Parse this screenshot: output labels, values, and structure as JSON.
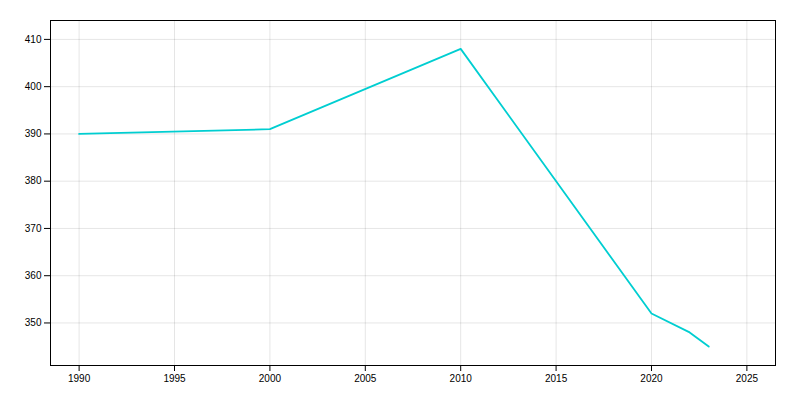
{
  "chart_data": {
    "type": "line",
    "x": [
      1990,
      2000,
      2010,
      2020,
      2022,
      2023
    ],
    "values": [
      390,
      391,
      408,
      352,
      348,
      345
    ],
    "color": "#00CED1",
    "xlim": [
      1988.5,
      2026.5
    ],
    "xticks": [
      1990,
      1995,
      2000,
      2005,
      2010,
      2015,
      2020,
      2025
    ],
    "ylim": [
      341,
      414
    ],
    "yticks": [
      350,
      360,
      370,
      380,
      390,
      400,
      410
    ],
    "grid": true
  }
}
